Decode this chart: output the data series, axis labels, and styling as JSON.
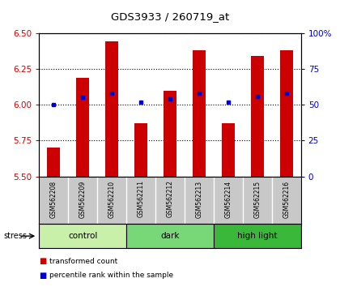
{
  "title": "GDS3933 / 260719_at",
  "samples": [
    "GSM562208",
    "GSM562209",
    "GSM562210",
    "GSM562211",
    "GSM562212",
    "GSM562213",
    "GSM562214",
    "GSM562215",
    "GSM562216"
  ],
  "transformed_counts": [
    5.7,
    6.19,
    6.44,
    5.87,
    6.1,
    6.38,
    5.87,
    6.34,
    6.38
  ],
  "percentile_values": [
    6.0,
    6.05,
    6.08,
    6.02,
    6.04,
    6.08,
    6.02,
    6.06,
    6.08
  ],
  "y_min": 5.5,
  "y_max": 6.5,
  "y_ticks": [
    5.5,
    5.75,
    6.0,
    6.25,
    6.5
  ],
  "right_y_ticks": [
    0,
    25,
    50,
    75,
    100
  ],
  "right_y_labels": [
    "0",
    "25",
    "50",
    "75",
    "100%"
  ],
  "groups": [
    {
      "label": "control",
      "start": 0,
      "end": 3,
      "color": "#c8f0a8"
    },
    {
      "label": "dark",
      "start": 3,
      "end": 6,
      "color": "#78d878"
    },
    {
      "label": "high light",
      "start": 6,
      "end": 9,
      "color": "#3ab83a"
    }
  ],
  "bar_color": "#cc0000",
  "dot_color": "#0000cc",
  "background_color": "#ffffff",
  "title_color": "#000000",
  "left_tick_color": "#cc0000",
  "right_tick_color": "#0000bb",
  "bar_bottom": 5.5,
  "stress_label": "stress",
  "legend_items": [
    "transformed count",
    "percentile rank within the sample"
  ],
  "sample_bg": "#c8c8c8"
}
